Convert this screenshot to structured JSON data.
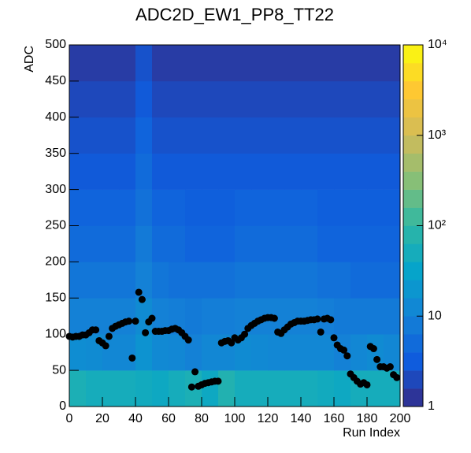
{
  "chart_data": {
    "type": "heatmap",
    "title": "ADC2D_EW1_PP8_TT22",
    "x_label": "Run Index",
    "y_label": "ADC",
    "xlim": [
      0,
      200
    ],
    "ylim": [
      0,
      500
    ],
    "xticks": [
      0,
      20,
      40,
      60,
      80,
      100,
      120,
      140,
      160,
      180,
      200
    ],
    "yticks": [
      0,
      50,
      100,
      150,
      200,
      250,
      300,
      350,
      400,
      450,
      500
    ],
    "zlim": [
      1,
      10000
    ],
    "zticks": [
      1,
      10,
      {
        "value": 100,
        "label": "10²"
      },
      {
        "value": 1000,
        "label": "10³"
      },
      {
        "value": 10000,
        "label": "10⁴"
      }
    ],
    "log_z": true,
    "colormap": [
      "#352a87",
      "#0f5cdd",
      "#1481d6",
      "#06a4ca",
      "#2eb7a4",
      "#87bf77",
      "#d1bb59",
      "#fec832",
      "#f9fb0e"
    ],
    "xbins": [
      0,
      10,
      20,
      30,
      40,
      50,
      60,
      70,
      80,
      90,
      100,
      110,
      120,
      130,
      140,
      150,
      160,
      170,
      180,
      190,
      200
    ],
    "ybins": [
      0,
      50,
      100,
      150,
      200,
      250,
      300,
      350,
      400,
      450,
      500
    ],
    "z": [
      [
        60,
        50,
        50,
        50,
        45,
        40,
        50,
        60,
        40,
        70,
        50,
        50,
        50,
        50,
        50,
        45,
        40,
        50,
        50,
        50
      ],
      [
        15,
        14,
        12,
        12,
        18,
        13,
        12,
        10,
        12,
        12,
        14,
        13,
        12,
        12,
        12,
        12,
        10,
        12,
        14,
        12
      ],
      [
        10,
        10,
        10,
        10,
        14,
        10,
        9,
        8,
        9,
        9,
        10,
        10,
        10,
        10,
        10,
        9,
        8,
        8,
        8,
        8
      ],
      [
        7,
        7,
        7,
        7,
        10,
        7,
        6,
        6,
        6,
        6,
        7,
        7,
        7,
        7,
        7,
        6,
        6,
        5,
        5,
        5
      ],
      [
        5,
        5,
        5,
        5,
        8,
        5,
        5,
        4,
        4,
        4,
        5,
        5,
        5,
        5,
        5,
        4,
        4,
        4,
        4,
        4
      ],
      [
        4,
        4,
        4,
        4,
        6,
        4,
        4,
        3.5,
        3.5,
        3.5,
        4,
        4,
        4,
        4,
        4,
        3.5,
        3.5,
        3.5,
        3.5,
        3.5
      ],
      [
        3,
        3,
        3,
        3,
        5,
        3,
        3,
        3,
        3,
        3,
        3,
        3,
        3,
        3,
        3,
        3,
        3,
        3,
        3,
        3
      ],
      [
        2.5,
        2.5,
        2.5,
        2.5,
        4,
        2.5,
        2.5,
        2.5,
        2.5,
        2.5,
        2.5,
        2.5,
        2.5,
        2.5,
        2.5,
        2.5,
        2.5,
        2.5,
        2.5,
        2.5
      ],
      [
        2,
        2,
        2,
        2,
        3,
        2,
        2,
        2,
        2,
        2,
        2,
        2,
        2,
        2,
        2,
        2,
        2,
        2,
        2,
        2
      ],
      [
        1.5,
        1.5,
        1.5,
        1.5,
        2.5,
        1.5,
        1.5,
        1.5,
        1.5,
        1.5,
        1.5,
        1.5,
        1.5,
        1.5,
        1.5,
        1.5,
        1.5,
        1.5,
        1.5,
        1.5
      ]
    ],
    "points": {
      "color": "#000000",
      "x": [
        0,
        2,
        4,
        6,
        8,
        10,
        12,
        14,
        16,
        18,
        20,
        22,
        24,
        26,
        28,
        30,
        32,
        34,
        36,
        38,
        40,
        42,
        44,
        46,
        48,
        50,
        52,
        54,
        56,
        58,
        60,
        62,
        64,
        66,
        68,
        70,
        72,
        74,
        76,
        78,
        80,
        82,
        84,
        86,
        88,
        90,
        92,
        94,
        96,
        98,
        100,
        102,
        104,
        106,
        108,
        110,
        112,
        114,
        116,
        118,
        120,
        122,
        124,
        126,
        128,
        130,
        132,
        134,
        136,
        138,
        140,
        142,
        144,
        146,
        148,
        150,
        152,
        154,
        156,
        158,
        160,
        162,
        164,
        166,
        168,
        170,
        172,
        174,
        176,
        178,
        180,
        182,
        184,
        186,
        188,
        190,
        192,
        194,
        196,
        198
      ],
      "y": [
        97,
        96,
        97,
        97,
        99,
        99,
        102,
        106,
        106,
        91,
        88,
        84,
        97,
        108,
        111,
        113,
        115,
        117,
        118,
        67,
        118,
        158,
        148,
        102,
        117,
        122,
        104,
        104,
        104,
        105,
        105,
        107,
        108,
        106,
        102,
        97,
        92,
        27,
        48,
        28,
        30,
        32,
        33,
        34,
        35,
        35,
        88,
        90,
        91,
        88,
        95,
        92,
        95,
        100,
        108,
        112,
        115,
        118,
        120,
        122,
        123,
        123,
        122,
        103,
        101,
        106,
        110,
        114,
        116,
        118,
        118,
        118,
        119,
        120,
        120,
        121,
        103,
        121,
        122,
        120,
        95,
        85,
        80,
        78,
        70,
        45,
        40,
        35,
        31,
        33,
        30,
        83,
        80,
        65,
        55,
        55,
        53,
        55,
        44,
        40
      ]
    }
  }
}
